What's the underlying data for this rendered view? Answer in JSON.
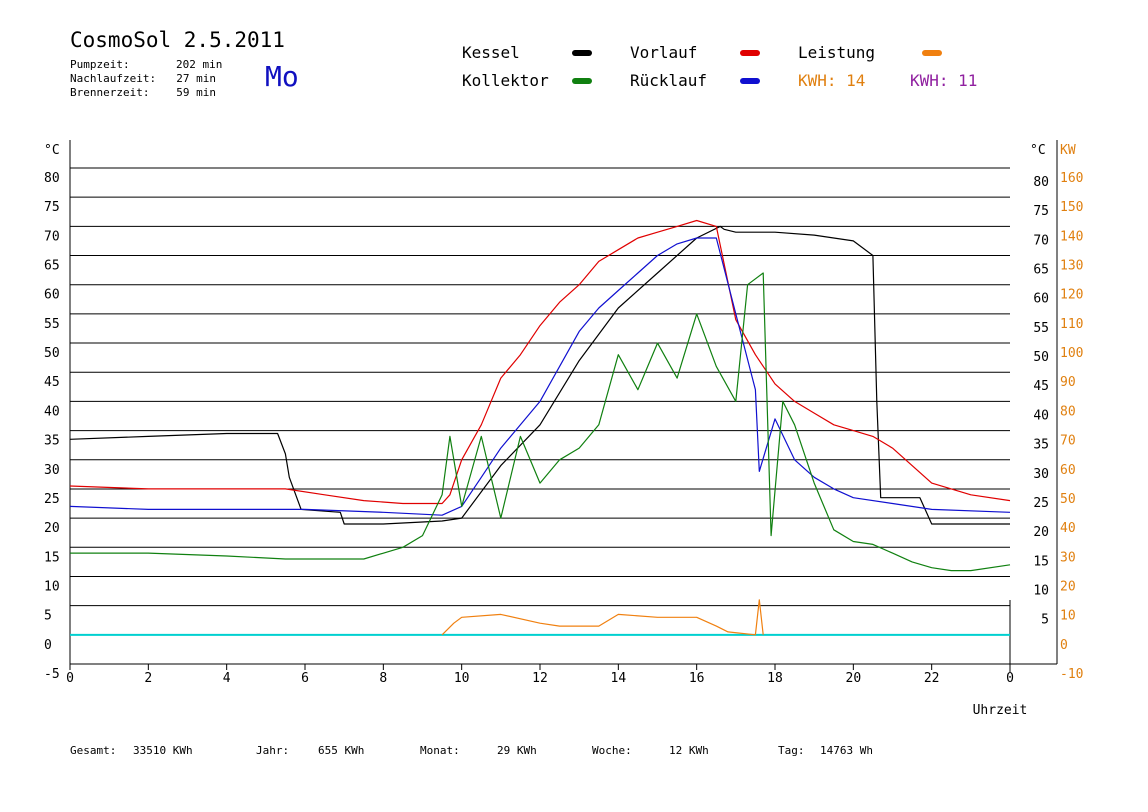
{
  "header": {
    "title": "CosmoSol 2.5.2011",
    "day": "Mo",
    "stats": [
      {
        "label": "Pumpzeit:",
        "value": "202 min"
      },
      {
        "label": "Nachlaufzeit:",
        "value": "27 min"
      },
      {
        "label": "Brennerzeit:",
        "value": "59 min"
      }
    ]
  },
  "legend": {
    "kessel": {
      "label": "Kessel",
      "color": "#000000"
    },
    "vorlauf": {
      "label": "Vorlauf",
      "color": "#e00000"
    },
    "leistung": {
      "label": "Leistung",
      "color": "#f08010"
    },
    "kollektor": {
      "label": "Kollektor",
      "color": "#108010"
    },
    "ruecklauf": {
      "label": "Rücklauf",
      "color": "#1010d0"
    },
    "kwh1": {
      "label": "KWH: 14",
      "color": "#e08010"
    },
    "kwh2": {
      "label": "KWH: 11",
      "color": "#9020a0"
    }
  },
  "footer": {
    "gesamt_label": "Gesamt:",
    "gesamt_value": "33510 KWh",
    "jahr_label": "Jahr:",
    "jahr_value": "655 KWh",
    "monat_label": "Monat:",
    "monat_value": "29 KWh",
    "woche_label": "Woche:",
    "woche_value": "12 KWh",
    "tag_label": "Tag:",
    "tag_value": "14763 Wh"
  },
  "chart_data": {
    "type": "line",
    "xlabel": "Uhrzeit",
    "ylabel_left": "°C",
    "ylabel_right_c": "°C",
    "ylabel_right_kw": "KW",
    "xlim": [
      0,
      24
    ],
    "ylim": [
      -5,
      85
    ],
    "x_ticks": [
      "0",
      "2",
      "4",
      "6",
      "8",
      "10",
      "12",
      "14",
      "16",
      "18",
      "20",
      "22",
      "0"
    ],
    "y_ticks_left": [
      "80",
      "75",
      "70",
      "65",
      "60",
      "55",
      "50",
      "45",
      "40",
      "35",
      "30",
      "25",
      "20",
      "15",
      "10",
      "5",
      "0",
      "-5"
    ],
    "y_ticks_right_c": [
      "80",
      "75",
      "70",
      "65",
      "60",
      "55",
      "50",
      "45",
      "40",
      "35",
      "30",
      "25",
      "20",
      "15",
      "10",
      "5"
    ],
    "y_ticks_right_kw": [
      "160",
      "150",
      "140",
      "130",
      "120",
      "110",
      "100",
      "90",
      "80",
      "70",
      "60",
      "50",
      "40",
      "30",
      "20",
      "10",
      "0",
      "-10"
    ],
    "grid": true,
    "series": [
      {
        "name": "Kessel",
        "color": "#000000",
        "x": [
          0,
          2,
          4,
          5.3,
          5.5,
          5.6,
          5.9,
          6.9,
          7.0,
          8.0,
          9.5,
          10.0,
          11.0,
          12.0,
          13.0,
          14.0,
          15.0,
          16.0,
          16.6,
          16.7,
          17.0,
          18.0,
          19.0,
          20.0,
          20.5,
          20.6,
          20.7,
          21.0,
          21.7,
          22.0,
          23.0,
          24.0
        ],
        "y": [
          33.5,
          34.0,
          34.5,
          34.5,
          31.0,
          27.0,
          21.5,
          21.0,
          19.0,
          19.0,
          19.5,
          20.0,
          29.0,
          36.0,
          47.0,
          56.0,
          62.0,
          68.0,
          70.0,
          69.5,
          69.0,
          69.0,
          68.5,
          67.5,
          65.0,
          40.0,
          23.5,
          23.5,
          23.5,
          19.0,
          19.0,
          19.0
        ]
      },
      {
        "name": "Vorlauf",
        "color": "#e00000",
        "x": [
          0,
          2,
          4,
          5.5,
          6.5,
          7.5,
          8.5,
          9.5,
          9.7,
          10.0,
          10.5,
          11.0,
          11.5,
          12.0,
          12.5,
          13.0,
          13.5,
          14.0,
          14.5,
          15.0,
          15.5,
          16.0,
          16.5,
          17.0,
          17.5,
          18.0,
          18.5,
          19.0,
          19.5,
          20.0,
          20.5,
          21.0,
          21.5,
          22.0,
          23.0,
          24.0
        ],
        "y": [
          25.5,
          25.0,
          25.0,
          25.0,
          24.0,
          23.0,
          22.5,
          22.5,
          24.0,
          30.0,
          36.0,
          44.0,
          48.0,
          53.0,
          57.0,
          60.0,
          64.0,
          66.0,
          68.0,
          69.0,
          70.0,
          71.0,
          70.0,
          54.0,
          48.0,
          43.0,
          40.0,
          38.0,
          36.0,
          35.0,
          34.0,
          32.0,
          29.0,
          26.0,
          24.0,
          23.0
        ]
      },
      {
        "name": "Rücklauf",
        "color": "#1010d0",
        "x": [
          0,
          2,
          4,
          6,
          8,
          9.5,
          10.0,
          10.5,
          11.0,
          11.5,
          12.0,
          12.5,
          13.0,
          13.5,
          14.0,
          14.5,
          15.0,
          15.5,
          16.0,
          16.5,
          17.0,
          17.5,
          17.6,
          18.0,
          18.5,
          19.0,
          19.5,
          20.0,
          21.0,
          22.0,
          24.0
        ],
        "y": [
          22.0,
          21.5,
          21.5,
          21.5,
          21.0,
          20.5,
          22.0,
          27.0,
          32.0,
          36.0,
          40.0,
          46.0,
          52.0,
          56.0,
          59.0,
          62.0,
          65.0,
          67.0,
          68.0,
          68.0,
          55.0,
          42.0,
          28.0,
          37.0,
          30.0,
          27.0,
          25.0,
          23.5,
          22.5,
          21.5,
          21.0
        ]
      },
      {
        "name": "Kollektor",
        "color": "#108010",
        "x": [
          0,
          2,
          4,
          5.5,
          6.5,
          7.5,
          8.5,
          9.0,
          9.5,
          9.7,
          10.0,
          10.5,
          11.0,
          11.5,
          12.0,
          12.5,
          13.0,
          13.5,
          14.0,
          14.5,
          15.0,
          15.5,
          16.0,
          16.5,
          17.0,
          17.3,
          17.7,
          17.9,
          18.2,
          18.5,
          19.0,
          19.5,
          20.0,
          20.5,
          21.0,
          21.5,
          22.0,
          22.5,
          23.0,
          24.0
        ],
        "y": [
          14.0,
          14.0,
          13.5,
          13.0,
          13.0,
          13.0,
          15.0,
          17.0,
          24.0,
          34.0,
          22.0,
          34.0,
          20.0,
          34.0,
          26.0,
          30.0,
          32.0,
          36.0,
          48.0,
          42.0,
          50.0,
          44.0,
          55.0,
          46.0,
          40.0,
          60.0,
          62.0,
          17.0,
          40.0,
          36.0,
          26.0,
          18.0,
          16.0,
          15.5,
          14.0,
          12.5,
          11.5,
          11.0,
          11.0,
          12.0
        ]
      },
      {
        "name": "Leistung",
        "color": "#f08010",
        "x": [
          9.5,
          9.8,
          10.0,
          11.0,
          12.0,
          12.5,
          13.5,
          14.0,
          15.0,
          16.0,
          16.5,
          16.8,
          17.5,
          17.6,
          17.7
        ],
        "y": [
          0.0,
          2.0,
          3.0,
          3.5,
          2.0,
          1.5,
          1.5,
          3.5,
          3.0,
          3.0,
          1.5,
          0.5,
          0.0,
          6.0,
          0.0
        ]
      }
    ]
  }
}
